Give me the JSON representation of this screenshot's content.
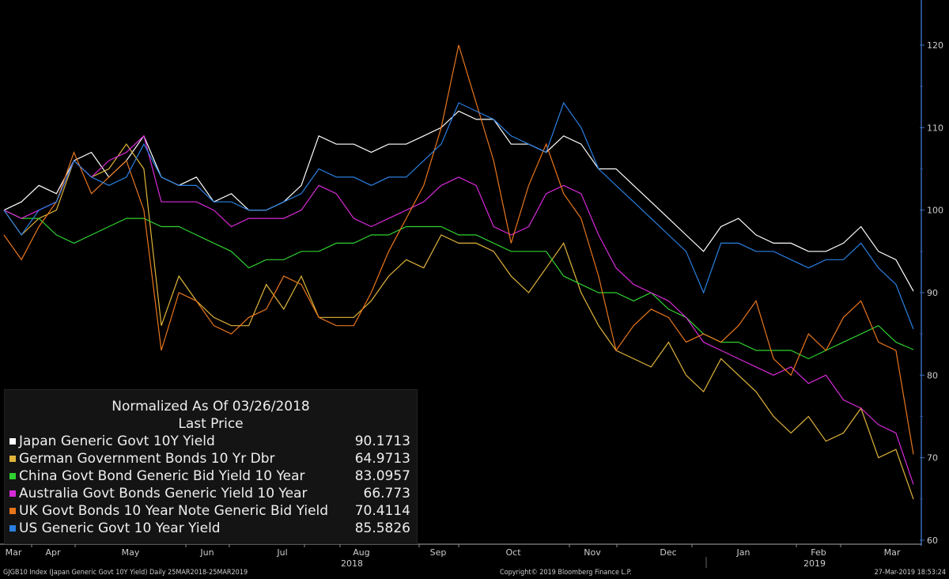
{
  "chart_data": {
    "type": "line",
    "title": "Normalized As Of 03/26/2018",
    "subtitle": "Last Price",
    "x_start": "2018-03-26",
    "x_step": "weekly",
    "x_month_labels": [
      "Mar",
      "Apr",
      "May",
      "Jun",
      "Jul",
      "Aug",
      "Sep",
      "Oct",
      "Nov",
      "Dec",
      "Jan",
      "Feb",
      "Mar"
    ],
    "x_year_labels": [
      "2018",
      "2019"
    ],
    "y_ticks": [
      "60",
      "70",
      "80",
      "90",
      "100",
      "110",
      "120"
    ],
    "ylim": [
      60,
      122
    ],
    "legend_placement": "bottom-left",
    "series": [
      {
        "name": "Japan Generic Govt 10Y Yield",
        "last": "90.1713",
        "color": "#ffffff",
        "values": [
          100,
          101,
          103,
          102,
          106,
          107,
          104,
          106,
          109,
          104,
          103,
          104,
          101,
          102,
          100,
          100,
          101,
          103,
          109,
          108,
          108,
          107,
          108,
          108,
          109,
          110,
          112,
          111,
          111,
          108,
          108,
          107,
          109,
          108,
          105,
          105,
          103,
          101,
          99,
          97,
          95,
          98,
          99,
          97,
          96,
          96,
          95,
          95,
          96,
          98,
          95,
          94,
          90.17
        ]
      },
      {
        "name": "German Government Bonds 10 Yr Dbr",
        "last": "64.9713",
        "color": "#e0b43a",
        "values": [
          100,
          97,
          99,
          100,
          106,
          104,
          105,
          108,
          105,
          86,
          92,
          89,
          87,
          86,
          86,
          91,
          88,
          92,
          87,
          87,
          87,
          89,
          92,
          94,
          93,
          97,
          96,
          96,
          95,
          92,
          90,
          93,
          96,
          90,
          86,
          83,
          82,
          81,
          84,
          80,
          78,
          82,
          80,
          78,
          75,
          73,
          75,
          72,
          73,
          76,
          70,
          71,
          64.97
        ]
      },
      {
        "name": "China Govt Bond Generic Bid Yield 10 Year",
        "last": "83.0957",
        "color": "#2fd12f",
        "values": [
          100,
          99,
          99,
          97,
          96,
          97,
          98,
          99,
          99,
          98,
          98,
          97,
          96,
          95,
          93,
          94,
          94,
          95,
          95,
          96,
          96,
          97,
          97,
          98,
          98,
          98,
          97,
          97,
          96,
          95,
          95,
          95,
          92,
          91,
          90,
          90,
          89,
          90,
          88,
          87,
          85,
          84,
          84,
          83,
          83,
          83,
          82,
          83,
          84,
          85,
          86,
          84,
          83.1
        ]
      },
      {
        "name": "Australia Govt Bonds Generic Yield 10 Year",
        "last": "66.773",
        "color": "#d62ad6",
        "values": [
          100,
          99,
          100,
          101,
          106,
          104,
          106,
          107,
          109,
          101,
          101,
          101,
          100,
          98,
          99,
          99,
          99,
          100,
          103,
          102,
          99,
          98,
          99,
          100,
          101,
          103,
          104,
          103,
          98,
          97,
          98,
          102,
          103,
          102,
          97,
          93,
          91,
          90,
          89,
          87,
          84,
          83,
          82,
          81,
          80,
          81,
          79,
          80,
          77,
          76,
          74,
          73,
          66.77
        ]
      },
      {
        "name": "UK Govt Bonds 10 Year Note Generic Bid Yield",
        "last": "70.4114",
        "color": "#e8761c",
        "values": [
          97,
          94,
          98,
          101,
          107,
          102,
          104,
          106,
          100,
          83,
          90,
          89,
          86,
          85,
          87,
          88,
          92,
          91,
          87,
          86,
          86,
          90,
          95,
          99,
          103,
          110,
          120,
          113,
          106,
          96,
          103,
          108,
          102,
          99,
          92,
          83,
          86,
          88,
          87,
          84,
          85,
          84,
          86,
          89,
          82,
          80,
          85,
          83,
          87,
          89,
          84,
          83,
          70.41
        ]
      },
      {
        "name": "US Generic Govt 10 Year Yield",
        "last": "85.5826",
        "color": "#2a7fe0",
        "values": [
          100,
          97,
          100,
          101,
          106,
          104,
          103,
          104,
          108,
          104,
          103,
          103,
          101,
          101,
          100,
          100,
          101,
          102,
          105,
          104,
          104,
          103,
          104,
          104,
          106,
          108,
          113,
          112,
          111,
          109,
          108,
          107,
          113,
          110,
          105,
          103,
          101,
          99,
          97,
          95,
          90,
          96,
          96,
          95,
          95,
          94,
          93,
          94,
          94,
          96,
          93,
          91,
          85.58
        ]
      }
    ]
  },
  "footer": {
    "left": "GJGB10 Index (Japan Generic Govt 10Y Yield)  Daily 25MAR2018-25MAR2019",
    "center": "Copyright© 2019 Bloomberg Finance L.P.",
    "right": "27-Mar-2019 18:53:24"
  }
}
